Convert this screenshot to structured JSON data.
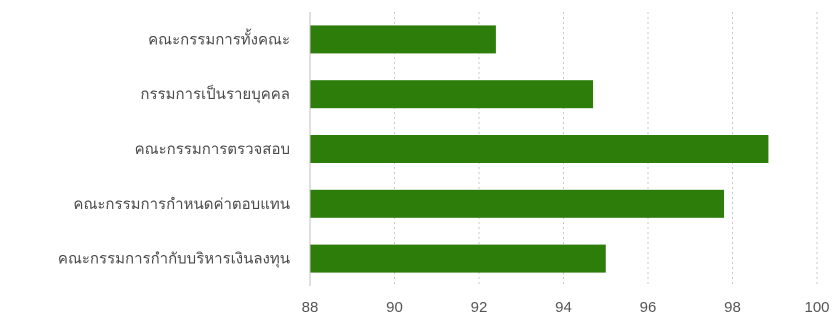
{
  "chart_data": {
    "type": "bar",
    "orientation": "horizontal",
    "categories": [
      "คณะกรรมการทั้งคณะ",
      "กรรมการเป็นรายบุคคล",
      "คณะกรรมการตรวจสอบ",
      "คณะกรรมการกำหนดค่าตอบแทน",
      "คณะกรรมการกำกับบริหารเงินลงทุน"
    ],
    "values": [
      92.4,
      94.7,
      98.85,
      97.8,
      95.0
    ],
    "xlim": [
      88,
      100
    ],
    "ticks": [
      "88",
      "90",
      "92",
      "94",
      "96",
      "98",
      "100"
    ],
    "title": "",
    "xlabel": "",
    "ylabel": "",
    "grid": "vertical-dotted",
    "bar_color": "#2d7d0a",
    "legend": "none"
  }
}
